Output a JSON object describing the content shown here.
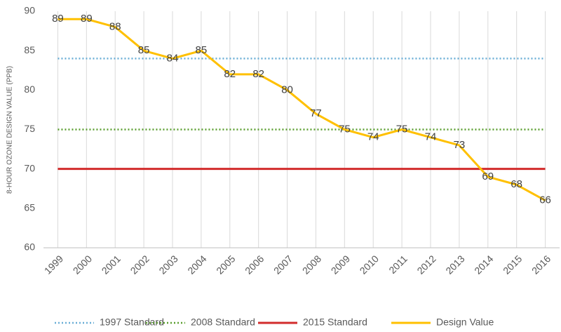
{
  "chart_data": {
    "type": "line",
    "y_label": "8-HOUR OZONE DESIGN VALUE (PPB)",
    "categories": [
      "1999",
      "2000",
      "2001",
      "2002",
      "2003",
      "2004",
      "2005",
      "2006",
      "2007",
      "2008",
      "2009",
      "2010",
      "2011",
      "2012",
      "2013",
      "2014",
      "2015",
      "2016"
    ],
    "series": [
      {
        "name": "1997 Standard",
        "color": "#6aaed6",
        "dash": "dotted",
        "values": [
          84,
          84,
          84,
          84,
          84,
          84,
          84,
          84,
          84,
          84,
          84,
          84,
          84,
          84,
          84,
          84,
          84,
          84
        ]
      },
      {
        "name": "2008 Standard",
        "color": "#5a9e2f",
        "dash": "dotted",
        "values": [
          75,
          75,
          75,
          75,
          75,
          75,
          75,
          75,
          75,
          75,
          75,
          75,
          75,
          75,
          75,
          75,
          75,
          75
        ]
      },
      {
        "name": "2015 Standard",
        "color": "#d22b2b",
        "dash": "solid",
        "values": [
          70,
          70,
          70,
          70,
          70,
          70,
          70,
          70,
          70,
          70,
          70,
          70,
          70,
          70,
          70,
          70,
          70,
          70
        ]
      },
      {
        "name": "Design Value",
        "color": "#ffc000",
        "dash": "solid",
        "data_labels": true,
        "values": [
          89,
          89,
          88,
          85,
          84,
          85,
          82,
          82,
          80,
          77,
          75,
          74,
          75,
          74,
          73,
          69,
          68,
          66
        ]
      }
    ],
    "ylim": [
      60,
      90
    ],
    "yticks": [
      60,
      65,
      70,
      75,
      80,
      85,
      90
    ],
    "grid": "vertical",
    "legend": "bottom"
  }
}
